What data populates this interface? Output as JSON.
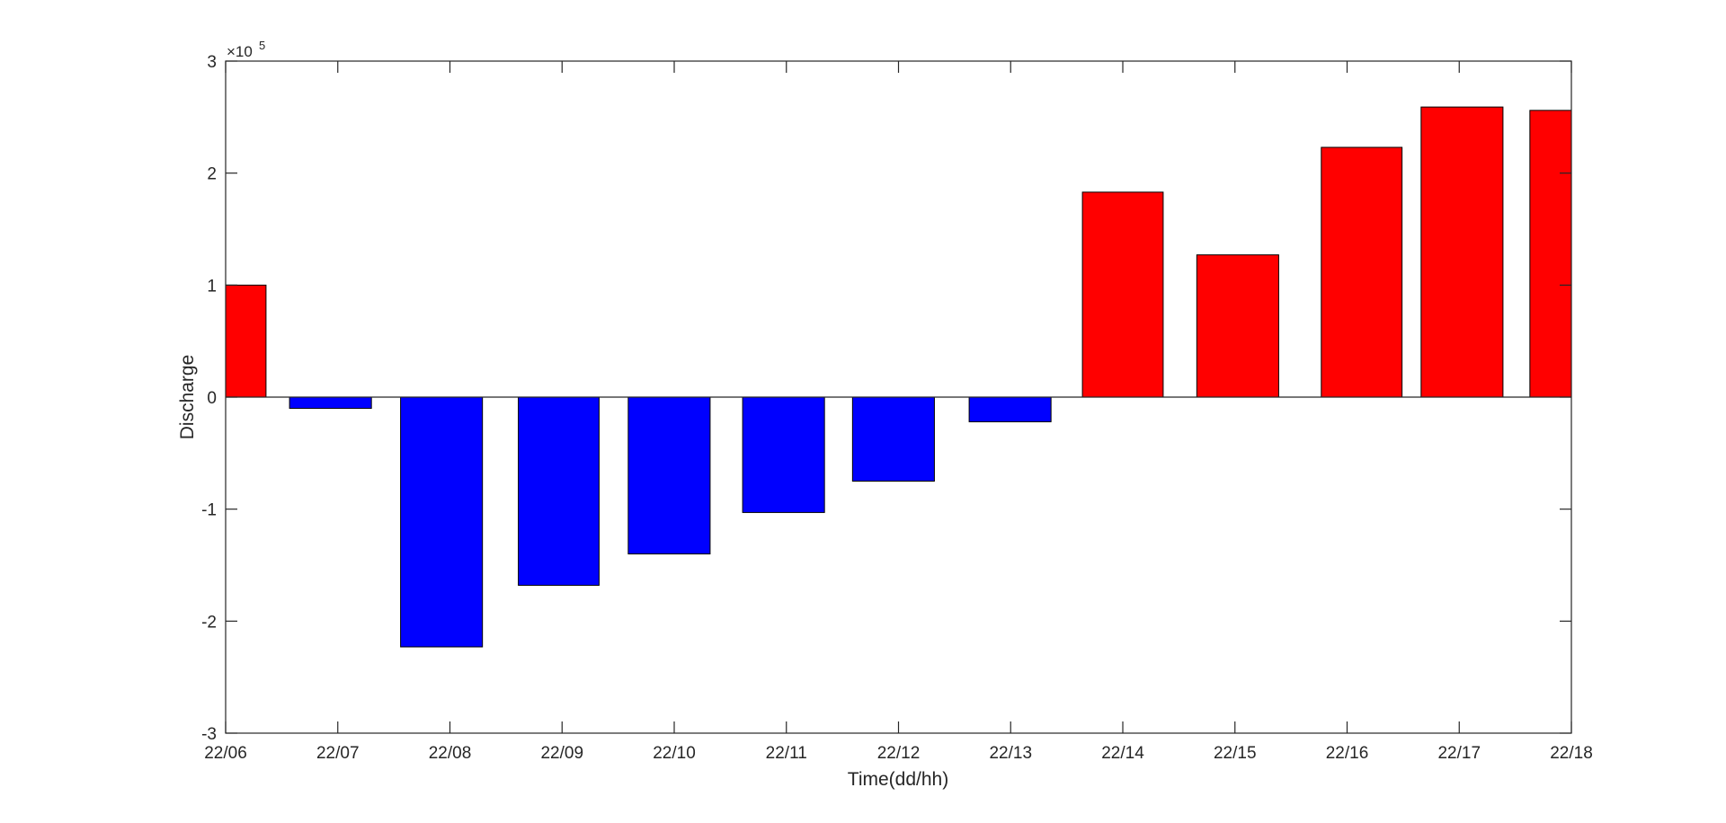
{
  "chart_data": {
    "type": "bar",
    "title": "",
    "xlabel": "Time(dd/hh)",
    "ylabel": "Discharge",
    "y_exponent_label": "×10",
    "y_exponent_power": "5",
    "ylim": [
      -3,
      3
    ],
    "yticks": [
      -3,
      -2,
      -1,
      0,
      1,
      2,
      3
    ],
    "ytick_labels": [
      "-3",
      "-2",
      "-1",
      "0",
      "1",
      "2",
      "3"
    ],
    "xlim": [
      6,
      18
    ],
    "xticks": [
      6,
      7,
      8,
      9,
      10,
      11,
      12,
      13,
      14,
      15,
      16,
      17,
      18
    ],
    "xtick_labels": [
      "22/06",
      "22/07",
      "22/08",
      "22/09",
      "22/10",
      "22/11",
      "22/12",
      "22/13",
      "22/14",
      "22/15",
      "22/16",
      "22/17",
      "22/18"
    ],
    "grid": false,
    "colors": {
      "positive": "#ff0000",
      "negative": "#0000ff",
      "edge": "#000000",
      "axis": "#262626"
    },
    "bars": [
      {
        "x_start": 5.64,
        "x_end": 6.36,
        "value": 1.0
      },
      {
        "x_start": 6.57,
        "x_end": 7.3,
        "value": -0.1
      },
      {
        "x_start": 7.56,
        "x_end": 8.29,
        "value": -2.23
      },
      {
        "x_start": 8.61,
        "x_end": 9.33,
        "value": -1.68
      },
      {
        "x_start": 9.59,
        "x_end": 10.32,
        "value": -1.4
      },
      {
        "x_start": 10.61,
        "x_end": 11.34,
        "value": -1.03
      },
      {
        "x_start": 11.59,
        "x_end": 12.32,
        "value": -0.75
      },
      {
        "x_start": 12.63,
        "x_end": 13.36,
        "value": -0.22
      },
      {
        "x_start": 13.64,
        "x_end": 14.36,
        "value": 1.83
      },
      {
        "x_start": 14.66,
        "x_end": 15.39,
        "value": 1.27
      },
      {
        "x_start": 15.77,
        "x_end": 16.49,
        "value": 2.23
      },
      {
        "x_start": 16.66,
        "x_end": 17.39,
        "value": 2.59
      },
      {
        "x_start": 17.63,
        "x_end": 18.36,
        "value": 2.56
      }
    ]
  }
}
